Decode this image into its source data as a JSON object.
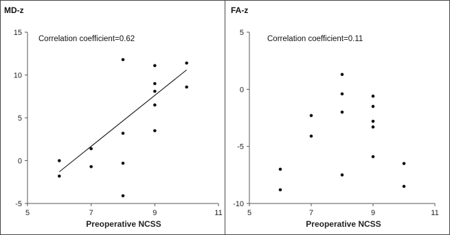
{
  "chart_data": [
    {
      "type": "scatter",
      "title": "MD-z",
      "annotation": "Correlation coefficient=0.62",
      "xlabel": "Preoperative NCSS",
      "ylabel": "",
      "xlim": [
        5,
        11
      ],
      "ylim": [
        -5,
        15
      ],
      "xticks": [
        5,
        7,
        9,
        11
      ],
      "yticks": [
        15,
        10,
        5,
        0,
        -5
      ],
      "points": [
        {
          "x": 6,
          "y": 0.0
        },
        {
          "x": 6,
          "y": -1.8
        },
        {
          "x": 7,
          "y": 1.4
        },
        {
          "x": 7,
          "y": -0.7
        },
        {
          "x": 8,
          "y": 11.8
        },
        {
          "x": 8,
          "y": 3.2
        },
        {
          "x": 8,
          "y": -0.3
        },
        {
          "x": 8,
          "y": -4.1
        },
        {
          "x": 9,
          "y": 11.1
        },
        {
          "x": 9,
          "y": 9.0
        },
        {
          "x": 9,
          "y": 8.1
        },
        {
          "x": 9,
          "y": 6.5
        },
        {
          "x": 9,
          "y": 3.5
        },
        {
          "x": 10,
          "y": 11.4
        },
        {
          "x": 10,
          "y": 8.6
        }
      ],
      "trendline": {
        "x": [
          6,
          10
        ],
        "y": [
          -1.3,
          10.6
        ]
      },
      "grid": false
    },
    {
      "type": "scatter",
      "title": "FA-z",
      "annotation": "Correlation coefficient=0.11",
      "xlabel": "Preoperative NCSS",
      "ylabel": "",
      "xlim": [
        5,
        11
      ],
      "ylim": [
        -10,
        5
      ],
      "xticks": [
        5,
        7,
        9,
        11
      ],
      "yticks": [
        5,
        0,
        -5,
        -10
      ],
      "points": [
        {
          "x": 6,
          "y": -7.0
        },
        {
          "x": 6,
          "y": -8.8
        },
        {
          "x": 7,
          "y": -2.3
        },
        {
          "x": 7,
          "y": -4.1
        },
        {
          "x": 8,
          "y": 1.3
        },
        {
          "x": 8,
          "y": -0.4
        },
        {
          "x": 8,
          "y": -2.0
        },
        {
          "x": 8,
          "y": -7.5
        },
        {
          "x": 9,
          "y": -0.6
        },
        {
          "x": 9,
          "y": -1.5
        },
        {
          "x": 9,
          "y": -2.8
        },
        {
          "x": 9,
          "y": -3.3
        },
        {
          "x": 9,
          "y": -5.9
        },
        {
          "x": 10,
          "y": -6.5
        },
        {
          "x": 10,
          "y": -8.5
        }
      ],
      "grid": false
    }
  ]
}
